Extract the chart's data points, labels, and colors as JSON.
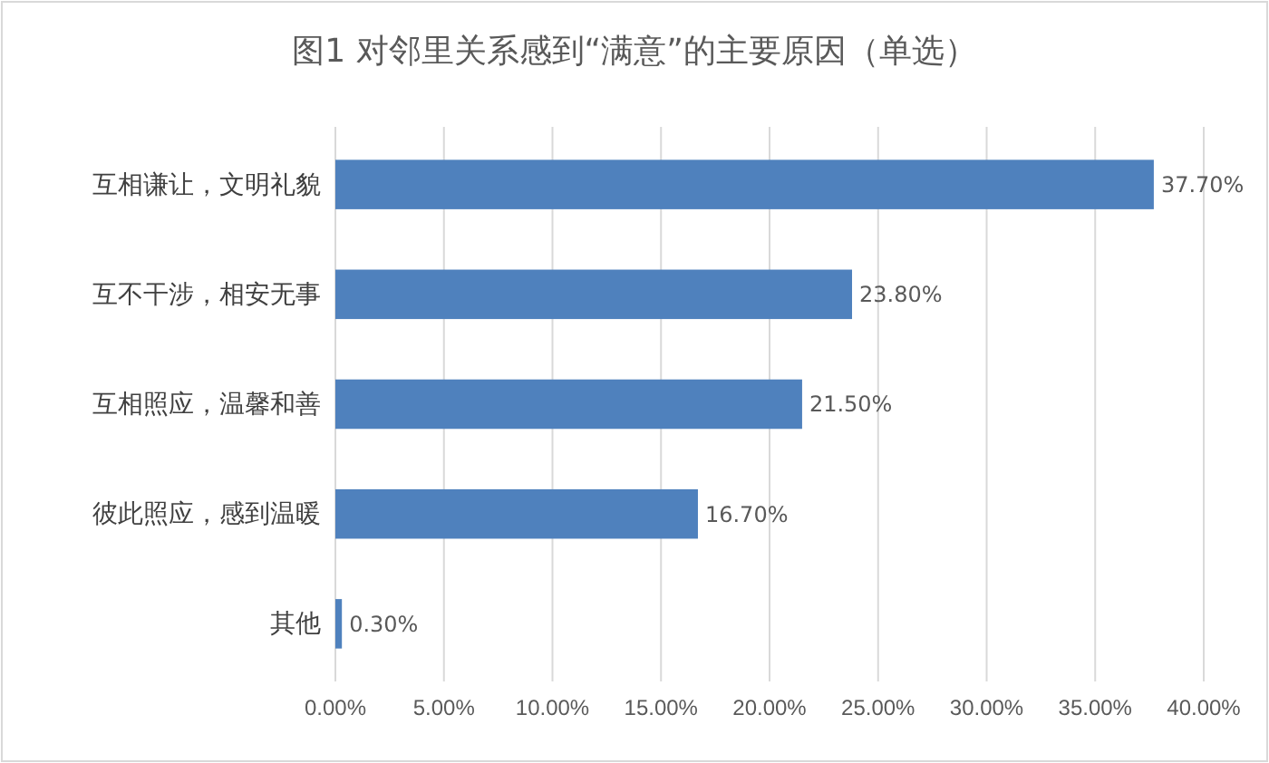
{
  "chart_data": {
    "type": "bar",
    "orientation": "horizontal",
    "title": "图1 对邻里关系感到“满意”的主要原因（单选）",
    "categories": [
      "互相谦让，文明礼貌",
      "互不干涉，相安无事",
      "互相照应，温馨和善",
      "彼此照应，感到温暖",
      "其他"
    ],
    "values": [
      37.7,
      23.8,
      21.5,
      16.7,
      0.3
    ],
    "value_labels": [
      "37.70%",
      "23.80%",
      "21.50%",
      "16.70%",
      "0.30%"
    ],
    "color": "#4f81bd",
    "xlim": [
      0,
      40
    ],
    "xticks": [
      {
        "value": 0,
        "label": "0.00%"
      },
      {
        "value": 5,
        "label": "5.00%"
      },
      {
        "value": 10,
        "label": "10.00%"
      },
      {
        "value": 15,
        "label": "15.00%"
      },
      {
        "value": 20,
        "label": "20.00%"
      },
      {
        "value": 25,
        "label": "25.00%"
      },
      {
        "value": 30,
        "label": "30.00%"
      },
      {
        "value": 35,
        "label": "35.00%"
      },
      {
        "value": 40,
        "label": "40.00%"
      }
    ],
    "grid": "x"
  }
}
